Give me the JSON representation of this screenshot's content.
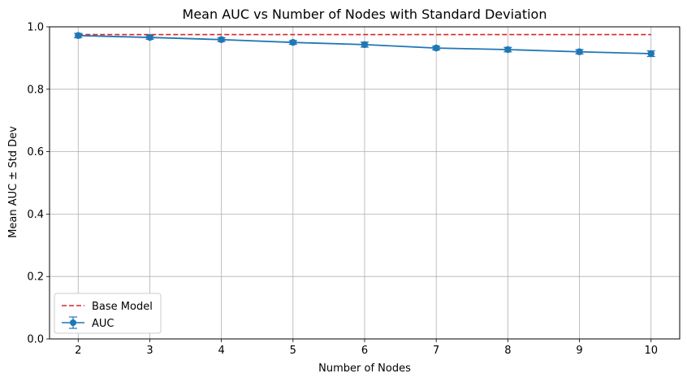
{
  "chart_data": {
    "type": "line",
    "title": "Mean AUC vs Number of Nodes with Standard Deviation",
    "xlabel": "Number of Nodes",
    "ylabel": "Mean AUC ± Std Dev",
    "x": [
      2,
      3,
      4,
      5,
      6,
      7,
      8,
      9,
      10
    ],
    "xlim": [
      1.6,
      10.4
    ],
    "ylim": [
      0,
      1.0
    ],
    "xticks": [
      "2",
      "3",
      "4",
      "5",
      "6",
      "7",
      "8",
      "9",
      "10"
    ],
    "yticks": [
      "0.0",
      "0.2",
      "0.4",
      "0.6",
      "0.8",
      "1.0"
    ],
    "grid": true,
    "legend_position": "lower-left",
    "series": [
      {
        "name": "AUC",
        "kind": "errorbar",
        "color": "#1f77b4",
        "values": [
          0.972,
          0.966,
          0.959,
          0.95,
          0.943,
          0.932,
          0.927,
          0.92,
          0.914
        ],
        "std": [
          0.007,
          0.006,
          0.006,
          0.006,
          0.008,
          0.006,
          0.007,
          0.007,
          0.009
        ]
      },
      {
        "name": "Base Model",
        "kind": "hline",
        "color": "#d62728",
        "style": "dashed",
        "value": 0.975
      }
    ]
  }
}
